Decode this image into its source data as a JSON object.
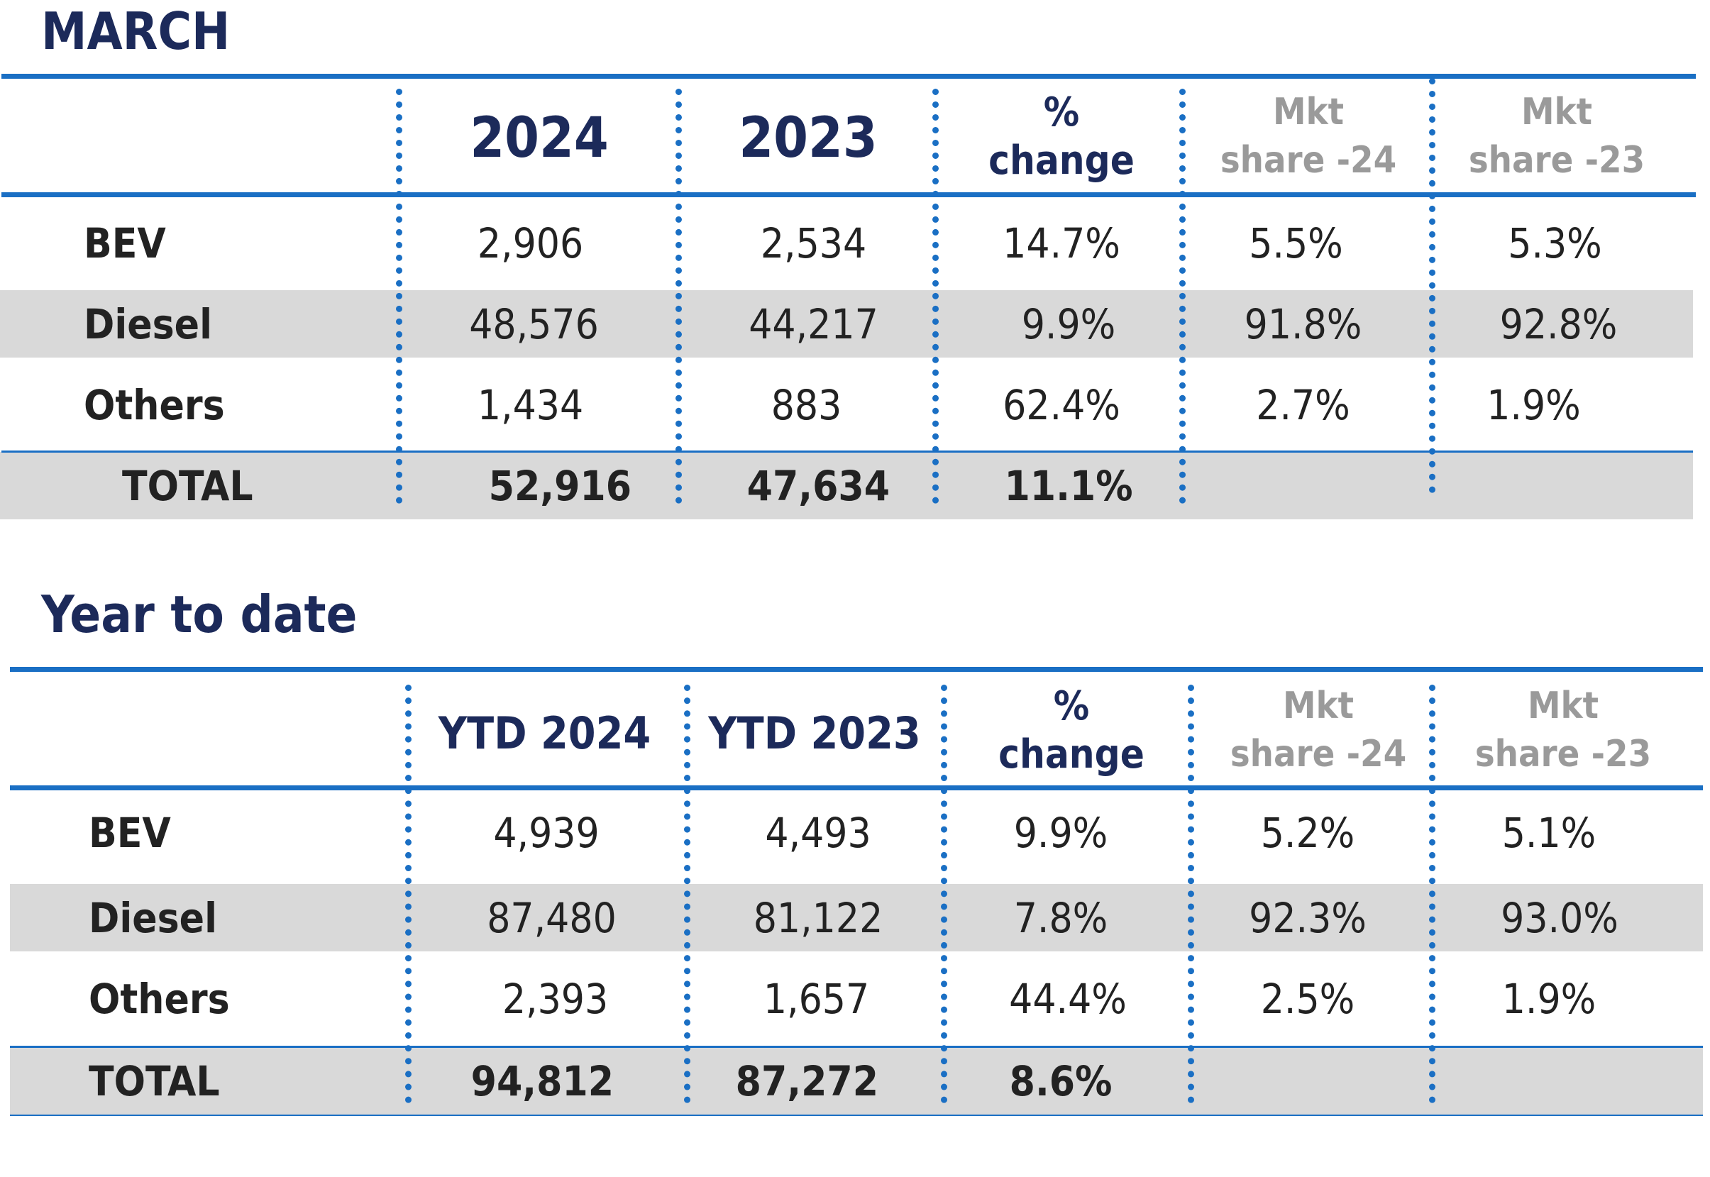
{
  "march": {
    "title": "MARCH",
    "headers": {
      "col1": "2024",
      "col2": "2023",
      "pct_line1": "%",
      "pct_line2": "change",
      "mkt24_line1": "Mkt",
      "mkt24_line2": "share -24",
      "mkt23_line1": "Mkt",
      "mkt23_line2": "share -23"
    },
    "rows": [
      {
        "label": "BEV",
        "v1": "2,906",
        "v2": "2,534",
        "pct": "14.7%",
        "m24": "5.5%",
        "m23": "5.3%"
      },
      {
        "label": "Diesel",
        "v1": "48,576",
        "v2": "44,217",
        "pct": "9.9%",
        "m24": "91.8%",
        "m23": "92.8%"
      },
      {
        "label": "Others",
        "v1": "1,434",
        "v2": "883",
        "pct": "62.4%",
        "m24": "2.7%",
        "m23": "1.9%"
      }
    ],
    "total": {
      "label": "TOTAL",
      "v1": "52,916",
      "v2": "47,634",
      "pct": "11.1%"
    }
  },
  "ytd": {
    "title": "Year to date",
    "headers": {
      "col1": "YTD 2024",
      "col2": "YTD 2023",
      "pct_line1": "%",
      "pct_line2": "change",
      "mkt24_line1": "Mkt",
      "mkt24_line2": "share -24",
      "mkt23_line1": "Mkt",
      "mkt23_line2": "share -23"
    },
    "rows": [
      {
        "label": "BEV",
        "v1": "4,939",
        "v2": "4,493",
        "pct": "9.9%",
        "m24": "5.2%",
        "m23": "5.1%"
      },
      {
        "label": "Diesel",
        "v1": "87,480",
        "v2": "81,122",
        "pct": "7.8%",
        "m24": "92.3%",
        "m23": "93.0%"
      },
      {
        "label": "Others",
        "v1": "2,393",
        "v2": "1,657",
        "pct": "44.4%",
        "m24": "2.5%",
        "m23": "1.9%"
      }
    ],
    "total": {
      "label": "TOTAL",
      "v1": "94,812",
      "v2": "87,272",
      "pct": "8.6%"
    }
  },
  "colors": {
    "accent_blue": "#1a6fc4",
    "title_navy": "#1c2a5a",
    "band_gray": "#d9d9d9",
    "muted_gray": "#9a9a9a"
  }
}
